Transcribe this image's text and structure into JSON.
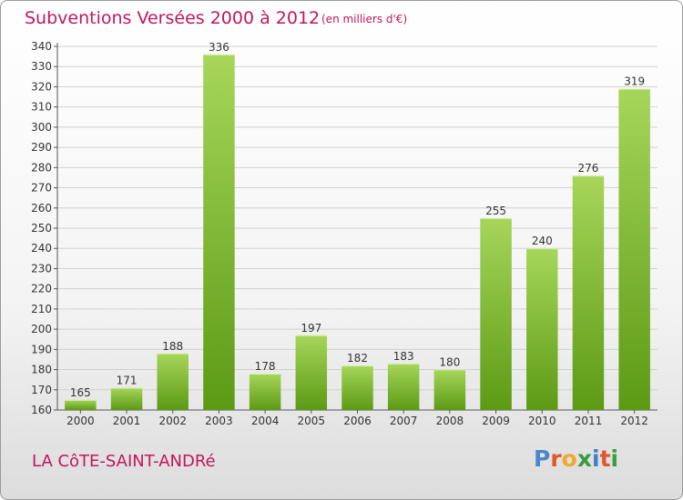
{
  "header": {
    "title": "Subventions Versées 2000 à 2012",
    "subtitle": "(en milliers d'€)"
  },
  "footer": {
    "commune": "LA CôTE-SAINT-ANDRé",
    "logo_text": "Proxiti",
    "logo_colors": [
      "#4a86c8",
      "#e0582d",
      "#f0a830",
      "#3a9a3c",
      "#3b83c8",
      "#e0582d",
      "#3aa03e"
    ]
  },
  "colors": {
    "accent": "#c0175d",
    "bar_light": "#a6d65a",
    "bar_dark": "#5c9a14",
    "grid": "#d0d0d0"
  },
  "chart_data": {
    "type": "bar",
    "categories": [
      "2000",
      "2001",
      "2002",
      "2003",
      "2004",
      "2005",
      "2006",
      "2007",
      "2008",
      "2009",
      "2010",
      "2011",
      "2012"
    ],
    "values": [
      165,
      171,
      188,
      336,
      178,
      197,
      182,
      183,
      180,
      255,
      240,
      276,
      319
    ],
    "data_labels": [
      "165",
      "171",
      "188",
      "336",
      "178",
      "197",
      "182",
      "183",
      "180",
      "255",
      "240",
      "276",
      "319"
    ],
    "yticks": [
      160,
      170,
      180,
      190,
      200,
      210,
      220,
      230,
      240,
      250,
      260,
      270,
      280,
      290,
      300,
      310,
      320,
      330,
      340
    ],
    "ylim": [
      160,
      340
    ],
    "grid": true,
    "legend": "none"
  }
}
